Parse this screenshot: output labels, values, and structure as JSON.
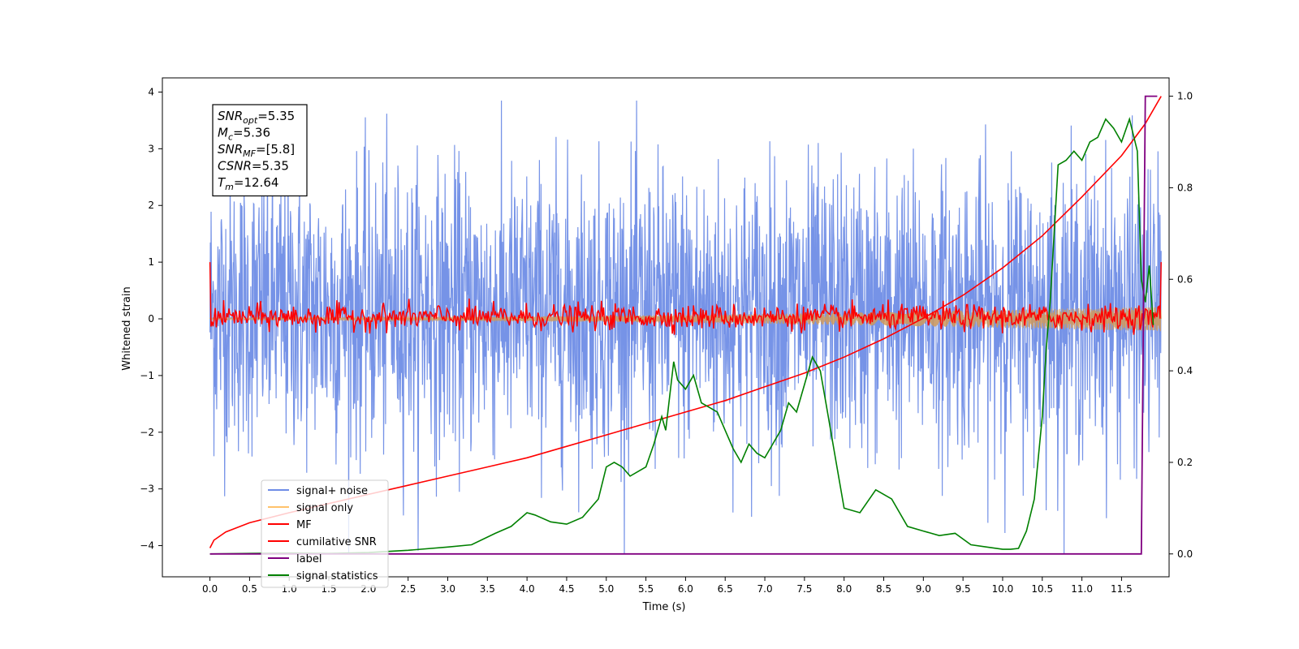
{
  "chart_data": {
    "type": "line",
    "xlabel": "Time (s)",
    "ylabel": "Whitened strain",
    "xlim": [
      -0.6,
      12.1
    ],
    "ylim_left": [
      -4.55,
      4.25
    ],
    "ylim_right": [
      -0.05,
      1.04
    ],
    "x_ticks": [
      0.0,
      0.5,
      1.0,
      1.5,
      2.0,
      2.5,
      3.0,
      3.5,
      4.0,
      4.5,
      5.0,
      5.5,
      6.0,
      6.5,
      7.0,
      7.5,
      8.0,
      8.5,
      9.0,
      9.5,
      10.0,
      10.5,
      11.0,
      11.5
    ],
    "x_tick_labels": [
      "0.0",
      "0.5",
      "1.0",
      "1.5",
      "2.0",
      "2.5",
      "3.0",
      "3.5",
      "4.0",
      "4.5",
      "5.0",
      "5.5",
      "6.0",
      "6.5",
      "7.0",
      "7.5",
      "8.0",
      "8.5",
      "9.0",
      "9.5",
      "10.0",
      "10.5",
      "11.0",
      "11.5"
    ],
    "y_left_ticks": [
      -4,
      -3,
      -2,
      -1,
      0,
      1,
      2,
      3,
      4
    ],
    "y_left_tick_labels": [
      "−4",
      "−3",
      "−2",
      "−1",
      "0",
      "1",
      "2",
      "3",
      "4"
    ],
    "y_right_ticks": [
      0.0,
      0.2,
      0.4,
      0.6,
      0.8,
      1.0
    ],
    "y_right_tick_labels": [
      "0.0",
      "0.2",
      "0.4",
      "0.6",
      "0.8",
      "1.0"
    ],
    "grid": false,
    "legend_position": "lower-left",
    "annotation_box": {
      "lines": [
        {
          "main": "SNR",
          "sub": "opt",
          "value": "=5.35"
        },
        {
          "main": "M",
          "sub": "c",
          "value": "=5.36"
        },
        {
          "main": "SNR",
          "sub": "MF",
          "value": "=[5.8]"
        },
        {
          "main": "CSNR",
          "sub": "",
          "value": "=5.35"
        },
        {
          "main": "T",
          "sub": "m",
          "value": "=12.64"
        }
      ]
    },
    "series": [
      {
        "name": "signal+ noise",
        "axis": "left",
        "color": "#6f8de6",
        "style": "dense-noise",
        "t_range": [
          0.0,
          12.0
        ],
        "envelope_approx": {
          "median_high": 2.3,
          "median_low": -1.9,
          "peak_high": 3.8,
          "peak_low": -4.15
        }
      },
      {
        "name": "signal only",
        "axis": "left",
        "color": "#ffb347",
        "style": "chirp",
        "t_range": [
          0.0,
          12.0
        ],
        "amplitude_start": 0.02,
        "amplitude_end": 0.22
      },
      {
        "name": "MF",
        "axis": "left",
        "color": "#ff0000",
        "style": "noisy-around-zero",
        "t_range": [
          0.0,
          12.0
        ],
        "start_value": 1.0,
        "end_value": 1.0,
        "typical_range": [
          -0.25,
          0.35
        ]
      },
      {
        "name": "cumilative SNR",
        "axis": "right",
        "color": "#ff0000",
        "x": [
          0.0,
          0.05,
          0.2,
          0.5,
          1.0,
          1.5,
          2.0,
          2.5,
          3.0,
          3.5,
          4.0,
          4.5,
          5.0,
          5.5,
          6.0,
          6.5,
          7.0,
          7.5,
          8.0,
          8.5,
          9.0,
          9.5,
          10.0,
          10.5,
          11.0,
          11.5,
          11.8,
          12.0
        ],
        "values": [
          0.013,
          0.03,
          0.048,
          0.068,
          0.09,
          0.11,
          0.13,
          0.15,
          0.17,
          0.19,
          0.21,
          0.235,
          0.26,
          0.285,
          0.31,
          0.335,
          0.365,
          0.395,
          0.43,
          0.47,
          0.515,
          0.565,
          0.625,
          0.695,
          0.78,
          0.87,
          0.94,
          1.0
        ]
      },
      {
        "name": "label",
        "axis": "right",
        "color": "#800080",
        "x": [
          0.0,
          11.75,
          11.8,
          11.95
        ],
        "values": [
          0.0,
          0.0,
          1.0,
          1.0
        ]
      },
      {
        "name": "signal statistics",
        "axis": "right",
        "color": "#008000",
        "x": [
          0.0,
          0.5,
          1.0,
          1.5,
          2.0,
          2.5,
          3.0,
          3.3,
          3.6,
          3.8,
          4.0,
          4.1,
          4.3,
          4.5,
          4.7,
          4.9,
          5.0,
          5.1,
          5.2,
          5.3,
          5.5,
          5.6,
          5.7,
          5.75,
          5.85,
          5.9,
          6.0,
          6.1,
          6.2,
          6.3,
          6.4,
          6.5,
          6.6,
          6.7,
          6.8,
          6.9,
          7.0,
          7.1,
          7.2,
          7.3,
          7.4,
          7.5,
          7.6,
          7.7,
          7.8,
          7.9,
          8.0,
          8.2,
          8.4,
          8.6,
          8.8,
          9.0,
          9.2,
          9.4,
          9.6,
          9.8,
          10.0,
          10.1,
          10.2,
          10.3,
          10.4,
          10.5,
          10.55,
          10.6,
          10.7,
          10.8,
          10.9,
          11.0,
          11.1,
          11.2,
          11.3,
          11.4,
          11.5,
          11.6,
          11.7,
          11.75,
          11.8,
          11.85,
          11.9
        ],
        "values": [
          0.0,
          0.001,
          0.002,
          0.001,
          0.003,
          0.008,
          0.015,
          0.02,
          0.045,
          0.06,
          0.09,
          0.085,
          0.07,
          0.065,
          0.08,
          0.12,
          0.19,
          0.2,
          0.19,
          0.17,
          0.19,
          0.24,
          0.3,
          0.27,
          0.42,
          0.38,
          0.36,
          0.39,
          0.33,
          0.32,
          0.31,
          0.27,
          0.23,
          0.2,
          0.24,
          0.22,
          0.21,
          0.24,
          0.27,
          0.33,
          0.31,
          0.37,
          0.43,
          0.4,
          0.3,
          0.2,
          0.1,
          0.09,
          0.14,
          0.12,
          0.06,
          0.05,
          0.04,
          0.045,
          0.02,
          0.015,
          0.01,
          0.01,
          0.012,
          0.05,
          0.12,
          0.3,
          0.45,
          0.55,
          0.85,
          0.86,
          0.88,
          0.86,
          0.9,
          0.91,
          0.95,
          0.93,
          0.9,
          0.95,
          0.88,
          0.6,
          0.55,
          0.63,
          0.5
        ]
      }
    ]
  }
}
